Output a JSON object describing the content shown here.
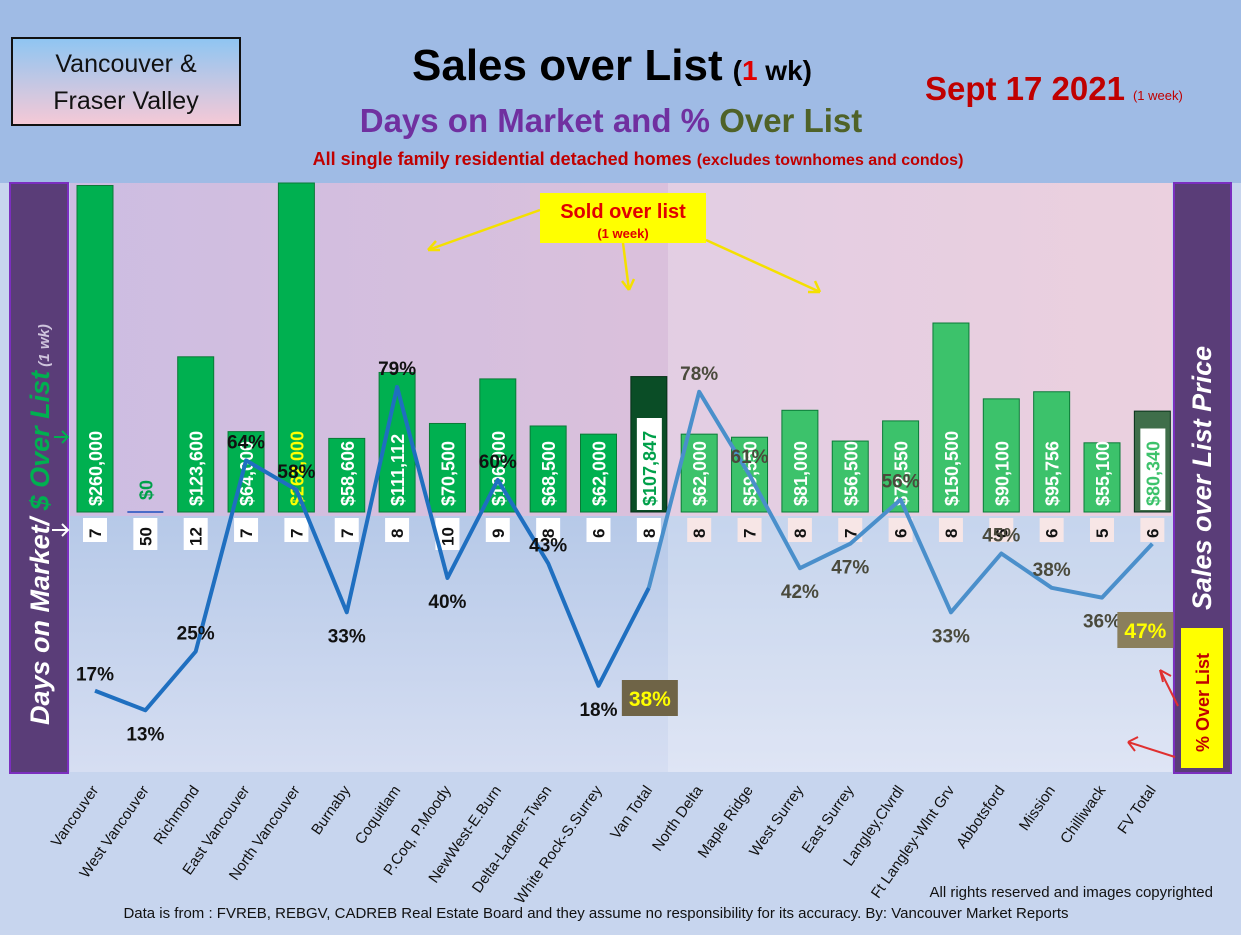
{
  "header": {
    "region_line1": "Vancouver &",
    "region_line2": "Fraser Valley",
    "title_main": "Sales over List",
    "title_open": "(",
    "title_num": "1",
    "title_unit": " wk)",
    "subtitle_a": "Days on Market and % ",
    "subtitle_b": "Over List",
    "note": "All single family residential detached homes ",
    "note_small": "(excludes townhomes and condos)",
    "date": "Sept 17  2021",
    "date_small": "(1 week)"
  },
  "left_panel": {
    "a": "Days on Market/ ",
    "b": "$ Over List",
    "c": " (1 wk)"
  },
  "right_panel": "Sales over List Price",
  "pct_badge": "% Over List",
  "callout": {
    "title": "Sold over list",
    "sub": "(1 week)"
  },
  "footer": {
    "rights": "All rights reserved and  images copyrighted",
    "source": "Data is from : FVREB, REBGV, CADREB Real Estate Board and they assume no responsibility for its accuracy. By: Vancouver Market Reports"
  },
  "colors": {
    "bar_green": "#00b050",
    "bar_total_dark": "#0a4d26",
    "line": "#1f6fc0",
    "title_red": "#c00000",
    "subtitle_purple": "#7030a0",
    "subtitle_green": "#4f6228",
    "panel_purple": "#5a3d78"
  },
  "chart_data": {
    "type": "bar",
    "categories": [
      "Vancouver",
      "West Vancouver",
      "Richmond",
      "East Vancouver",
      "North Vancouver",
      "Burnaby",
      "Coquitlam",
      "P.Coq, P.Moody",
      "NewWest-E.Burn",
      "Delta-Ladner-Twsn",
      "White Rock-S.Surrey",
      "Van Total",
      "North Delta",
      "Maple Ridge",
      "West Surrey",
      "East Surrey",
      "Langley,Clvrdl",
      "Ft Langley-Wlnt Grv",
      "Abbotsford",
      "Mission",
      "Chilliwack",
      "FV Total"
    ],
    "series": [
      {
        "name": "$ Over List",
        "values": [
          260000,
          0,
          123600,
          64000,
          262000,
          58606,
          111112,
          70500,
          106000,
          68500,
          62000,
          107847,
          62000,
          59550,
          81000,
          56500,
          72550,
          150500,
          90100,
          95756,
          55100,
          80340
        ],
        "labels": [
          "$260,000",
          "$0",
          "$123,600",
          "$64,000",
          "$262,000",
          "$58,606",
          "$111,112",
          "$70,500",
          "$106,000",
          "$68,500",
          "$62,000",
          "$107,847",
          "$62,000",
          "$59,550",
          "$81,000",
          "$56,500",
          "$72,550",
          "$150,500",
          "$90,100",
          "$95,756",
          "$55,100",
          "$80,340"
        ]
      },
      {
        "name": "Days on Market",
        "values": [
          7,
          50,
          12,
          7,
          7,
          7,
          8,
          10,
          9,
          8,
          6,
          8,
          8,
          7,
          8,
          7,
          6,
          8,
          6,
          6,
          5,
          6
        ]
      },
      {
        "name": "% Over List",
        "values": [
          17,
          13,
          25,
          64,
          58,
          33,
          79,
          40,
          60,
          43,
          18,
          38,
          78,
          61,
          42,
          47,
          56,
          33,
          45,
          38,
          36,
          47
        ],
        "labels": [
          "17%",
          "13%",
          "25%",
          "64%",
          "58%",
          "33%",
          "79%",
          "40%",
          "60%",
          "43%",
          "18%",
          "38%",
          "78%",
          "61%",
          "42%",
          "47%",
          "56%",
          "33%",
          "45%",
          "38%",
          "36%",
          "47%"
        ]
      }
    ],
    "totals": [
      "Van Total",
      "FV Total"
    ],
    "title": "Sales over List (1 wk)",
    "ylabel": "Days on Market/ $ Over List (1 wk)",
    "ylabel_right": "Sales over List Price"
  }
}
